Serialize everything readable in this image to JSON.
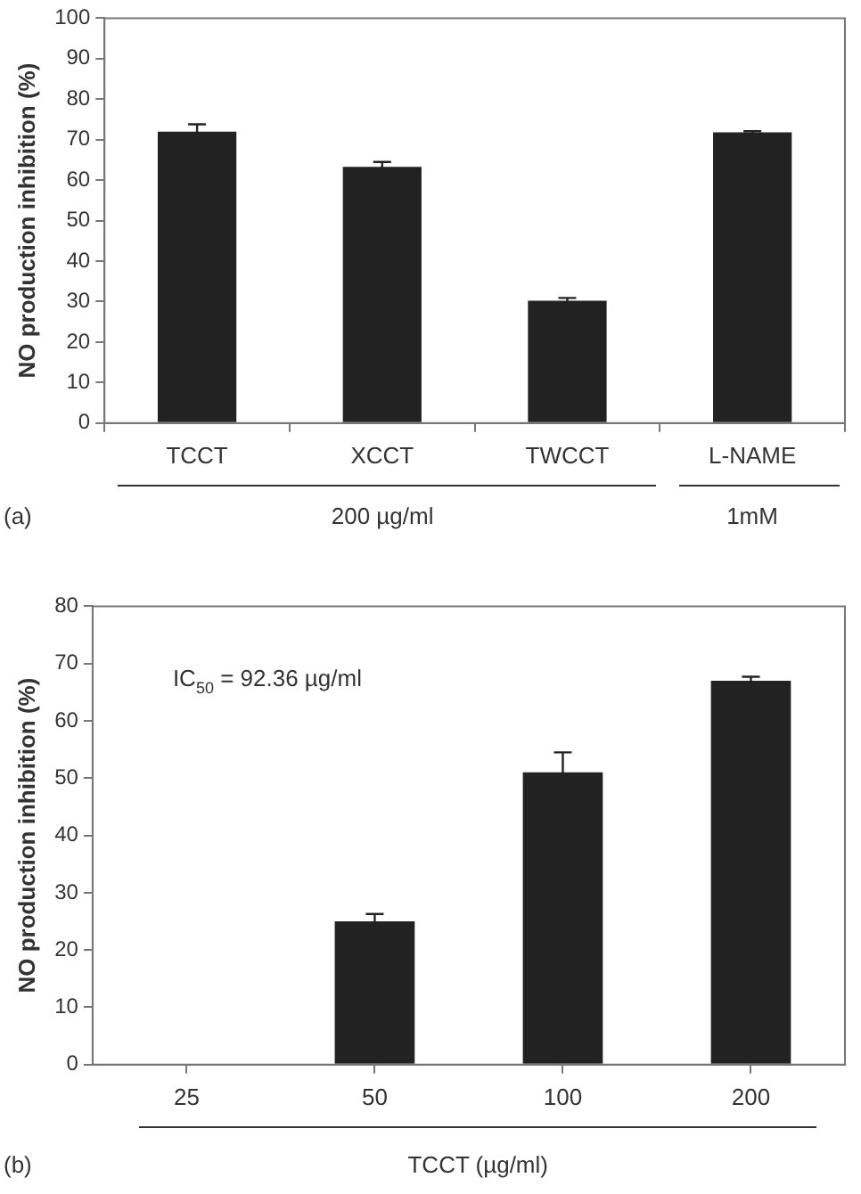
{
  "chart_data": [
    {
      "type": "bar",
      "ylabel": "NO production inhibition (%)",
      "categories": [
        "TCCT",
        "XCCT",
        "TWCCT",
        "L-NAME"
      ],
      "values": [
        72,
        63.3,
        30.2,
        71.8
      ],
      "errors": [
        1.8,
        1.2,
        0.7,
        0.3
      ],
      "color": "#222222",
      "ylim": [
        0,
        100
      ],
      "yticks": [
        0,
        10,
        20,
        30,
        40,
        50,
        60,
        70,
        80,
        90,
        100
      ],
      "grid": false,
      "legend": false,
      "annotations": [
        "(a)",
        "200   µg/ml",
        "1mM"
      ]
    },
    {
      "type": "bar",
      "ylabel": "NO production inhibition (%)",
      "xlabel": "TCCT (µg/ml)",
      "categories": [
        "25",
        "50",
        "100",
        "200"
      ],
      "values": [
        0,
        25,
        51,
        67
      ],
      "errors": [
        null,
        1.3,
        3.5,
        0.7
      ],
      "color": "#222222",
      "ylim": [
        0,
        80
      ],
      "yticks": [
        0,
        10,
        20,
        30,
        40,
        50,
        60,
        70,
        80
      ],
      "grid": false,
      "legend": false,
      "annotations": [
        "(b)",
        "IC$_{50}$ = 92.36 µg/ml"
      ]
    }
  ]
}
